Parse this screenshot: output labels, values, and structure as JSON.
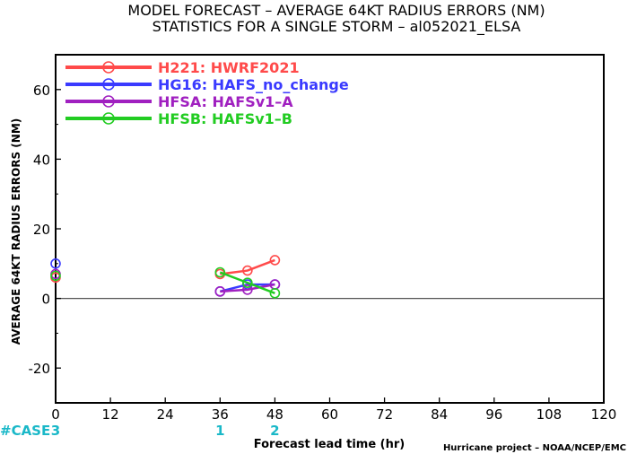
{
  "chart_data": {
    "type": "line",
    "title": "MODEL FORECAST – AVERAGE 64KT RADIUS ERRORS (NM)",
    "subtitle": "STATISTICS FOR A SINGLE STORM – al052021_ELSA",
    "xlabel": "Forecast lead time (hr)",
    "ylabel": "AVERAGE 64KT RADIUS ERRORS (NM)",
    "xlim": [
      0,
      120
    ],
    "ylim": [
      -30,
      70
    ],
    "xticks": [
      0,
      12,
      24,
      36,
      48,
      60,
      72,
      84,
      96,
      108,
      120
    ],
    "yticks": [
      -20,
      0,
      20,
      40,
      60
    ],
    "zero_line": true,
    "legend_position": "top-left",
    "series": [
      {
        "name": "H221: HWRF2021",
        "color": "#ff4a4a",
        "x": [
          0,
          36,
          42,
          48
        ],
        "y": [
          6,
          7,
          8,
          11
        ]
      },
      {
        "name": "HG16: HAFS_no_change",
        "color": "#3a3aff",
        "x": [
          0,
          36,
          42,
          48
        ],
        "y": [
          10,
          2,
          4,
          4
        ]
      },
      {
        "name": "HFSA: HAFSv1–A",
        "color": "#a020c0",
        "x": [
          0,
          36,
          42,
          48
        ],
        "y": [
          7,
          2,
          2.5,
          4
        ]
      },
      {
        "name": "HFSB: HAFSv1–B",
        "color": "#22cc22",
        "x": [
          0,
          36,
          42,
          48
        ],
        "y": [
          6.5,
          7.5,
          4.5,
          1.5
        ]
      }
    ],
    "case_counts": {
      "label": "#CASE",
      "color": "#1ab8c8",
      "entries": [
        {
          "x": 0,
          "count": "3"
        },
        {
          "x": 36,
          "count": "1"
        },
        {
          "x": 48,
          "count": "2"
        }
      ]
    }
  },
  "footer": {
    "credit": "Hurricane project – NOAA/NCEP/EMC"
  }
}
